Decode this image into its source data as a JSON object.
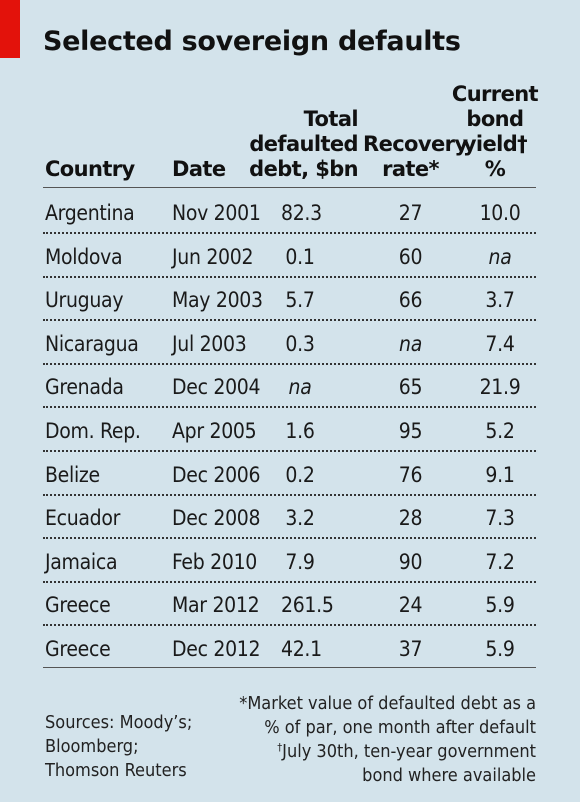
{
  "chart_data": {
    "type": "table",
    "title": "Selected sovereign defaults",
    "columns": [
      {
        "key": "country",
        "label_lines": [
          "Country"
        ]
      },
      {
        "key": "date",
        "label_lines": [
          "Date"
        ]
      },
      {
        "key": "debt",
        "label_lines": [
          "Total",
          "defaulted",
          "debt, $bn"
        ]
      },
      {
        "key": "recovery",
        "label_lines": [
          "Recovery",
          "rate*"
        ]
      },
      {
        "key": "yield",
        "label_lines": [
          "Current",
          "bond",
          "yield†",
          "%"
        ]
      }
    ],
    "rows": [
      {
        "country": "Argentina",
        "date": "Nov 2001",
        "debt": "82.3",
        "recovery": "27",
        "yield": "10.0"
      },
      {
        "country": "Moldova",
        "date": "Jun 2002",
        "debt": "0.1",
        "recovery": "60",
        "yield": "na"
      },
      {
        "country": "Uruguay",
        "date": "May 2003",
        "debt": "5.7",
        "recovery": "66",
        "yield": "3.7"
      },
      {
        "country": "Nicaragua",
        "date": "Jul 2003",
        "debt": "0.3",
        "recovery": "na",
        "yield": "7.4"
      },
      {
        "country": "Grenada",
        "date": "Dec 2004",
        "debt": "na",
        "recovery": "65",
        "yield": "21.9"
      },
      {
        "country": "Dom. Rep.",
        "date": "Apr 2005",
        "debt": "1.6",
        "recovery": "95",
        "yield": "5.2"
      },
      {
        "country": "Belize",
        "date": "Dec 2006",
        "debt": "0.2",
        "recovery": "76",
        "yield": "9.1"
      },
      {
        "country": "Ecuador",
        "date": "Dec 2008",
        "debt": "3.2",
        "recovery": "28",
        "yield": "7.3"
      },
      {
        "country": "Jamaica",
        "date": "Feb 2010",
        "debt": "7.9",
        "recovery": "90",
        "yield": "7.2"
      },
      {
        "country": "Greece",
        "date": "Mar 2012",
        "debt": "261.5",
        "recovery": "24",
        "yield": "5.9"
      },
      {
        "country": "Greece",
        "date": "Dec 2012",
        "debt": "42.1",
        "recovery": "37",
        "yield": "5.9"
      }
    ],
    "sources_lines": [
      "Sources: Moody’s;",
      "Bloomberg;",
      "Thomson Reuters"
    ],
    "footnote_lines": [
      "*Market value of defaulted debt as a",
      "% of par, one month after default",
      "†July 30th, ten-year government",
      "bond where available"
    ]
  },
  "colors": {
    "background": "#d3e3eb",
    "accent": "#e3120b",
    "text": "#1a1a1a"
  }
}
